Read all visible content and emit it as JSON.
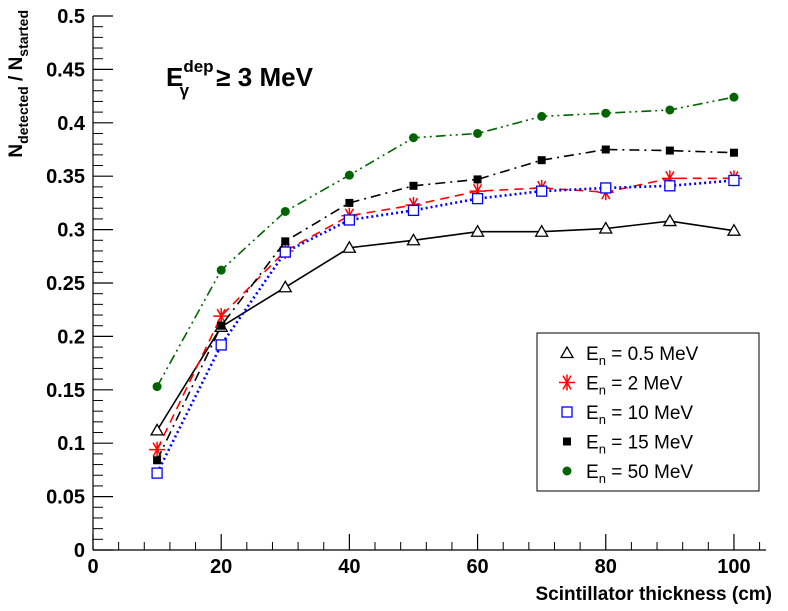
{
  "chart_data": {
    "type": "line",
    "title": "",
    "xlabel": "Scintillator thickness (cm)",
    "ylabel": {
      "main": "N",
      "num_sub": "detected",
      "sep": " / ",
      "den_main": "N",
      "den_sub": "started"
    },
    "xlim": [
      0,
      105
    ],
    "ylim": [
      0,
      0.5
    ],
    "x_ticks": [
      0,
      20,
      40,
      60,
      80,
      100
    ],
    "x_tick_labels": [
      "0",
      "20",
      "40",
      "60",
      "80",
      "100"
    ],
    "y_ticks": [
      0,
      0.05,
      0.1,
      0.15,
      0.2,
      0.25,
      0.3,
      0.35,
      0.4,
      0.45,
      0.5
    ],
    "y_tick_labels": [
      "0",
      "0.05",
      "0.1",
      "0.15",
      "0.2",
      "0.25",
      "0.3",
      "0.35",
      "0.4",
      "0.45",
      "0.5"
    ],
    "grid": false,
    "annotation": {
      "base": "E",
      "sub": "γ",
      "sup": "dep",
      "rest": " ≥ 3 MeV"
    },
    "legend_position": "bottom-right",
    "x": [
      10,
      20,
      30,
      40,
      50,
      60,
      70,
      80,
      90,
      100
    ],
    "series": [
      {
        "name": "0.5 MeV",
        "legend": {
          "base": "E",
          "sub": "n",
          "rest": " = 0.5 MeV"
        },
        "marker": "open-triangle",
        "color": "#000000",
        "line_style": "solid",
        "values": [
          0.112,
          0.209,
          0.246,
          0.283,
          0.29,
          0.298,
          0.298,
          0.301,
          0.308,
          0.299
        ]
      },
      {
        "name": "2 MeV",
        "legend": {
          "base": "E",
          "sub": "n",
          "rest": " =  2  MeV"
        },
        "marker": "asterisk",
        "color": "#ff0000",
        "line_style": "dashed",
        "values": [
          0.094,
          0.219,
          0.28,
          0.313,
          0.323,
          0.336,
          0.339,
          0.335,
          0.348,
          0.348
        ]
      },
      {
        "name": "10 MeV",
        "legend": {
          "base": "E",
          "sub": "n",
          "rest": " = 10  MeV"
        },
        "marker": "open-square",
        "color": "#0000ff",
        "line_style": "dotted",
        "values": [
          0.072,
          0.192,
          0.279,
          0.309,
          0.318,
          0.329,
          0.336,
          0.339,
          0.341,
          0.346
        ]
      },
      {
        "name": "15 MeV",
        "legend": {
          "base": "E",
          "sub": "n",
          "rest": " = 15  MeV"
        },
        "marker": "filled-square",
        "color": "#000000",
        "line_style": "dash-dot",
        "values": [
          0.084,
          0.21,
          0.289,
          0.325,
          0.341,
          0.347,
          0.365,
          0.375,
          0.374,
          0.372
        ]
      },
      {
        "name": "50 MeV",
        "legend": {
          "base": "E",
          "sub": "n",
          "rest": " = 50  MeV"
        },
        "marker": "filled-circle",
        "color": "#006400",
        "line_style": "dash-dot-dot",
        "values": [
          0.153,
          0.262,
          0.317,
          0.351,
          0.386,
          0.39,
          0.406,
          0.409,
          0.412,
          0.424
        ]
      }
    ]
  }
}
